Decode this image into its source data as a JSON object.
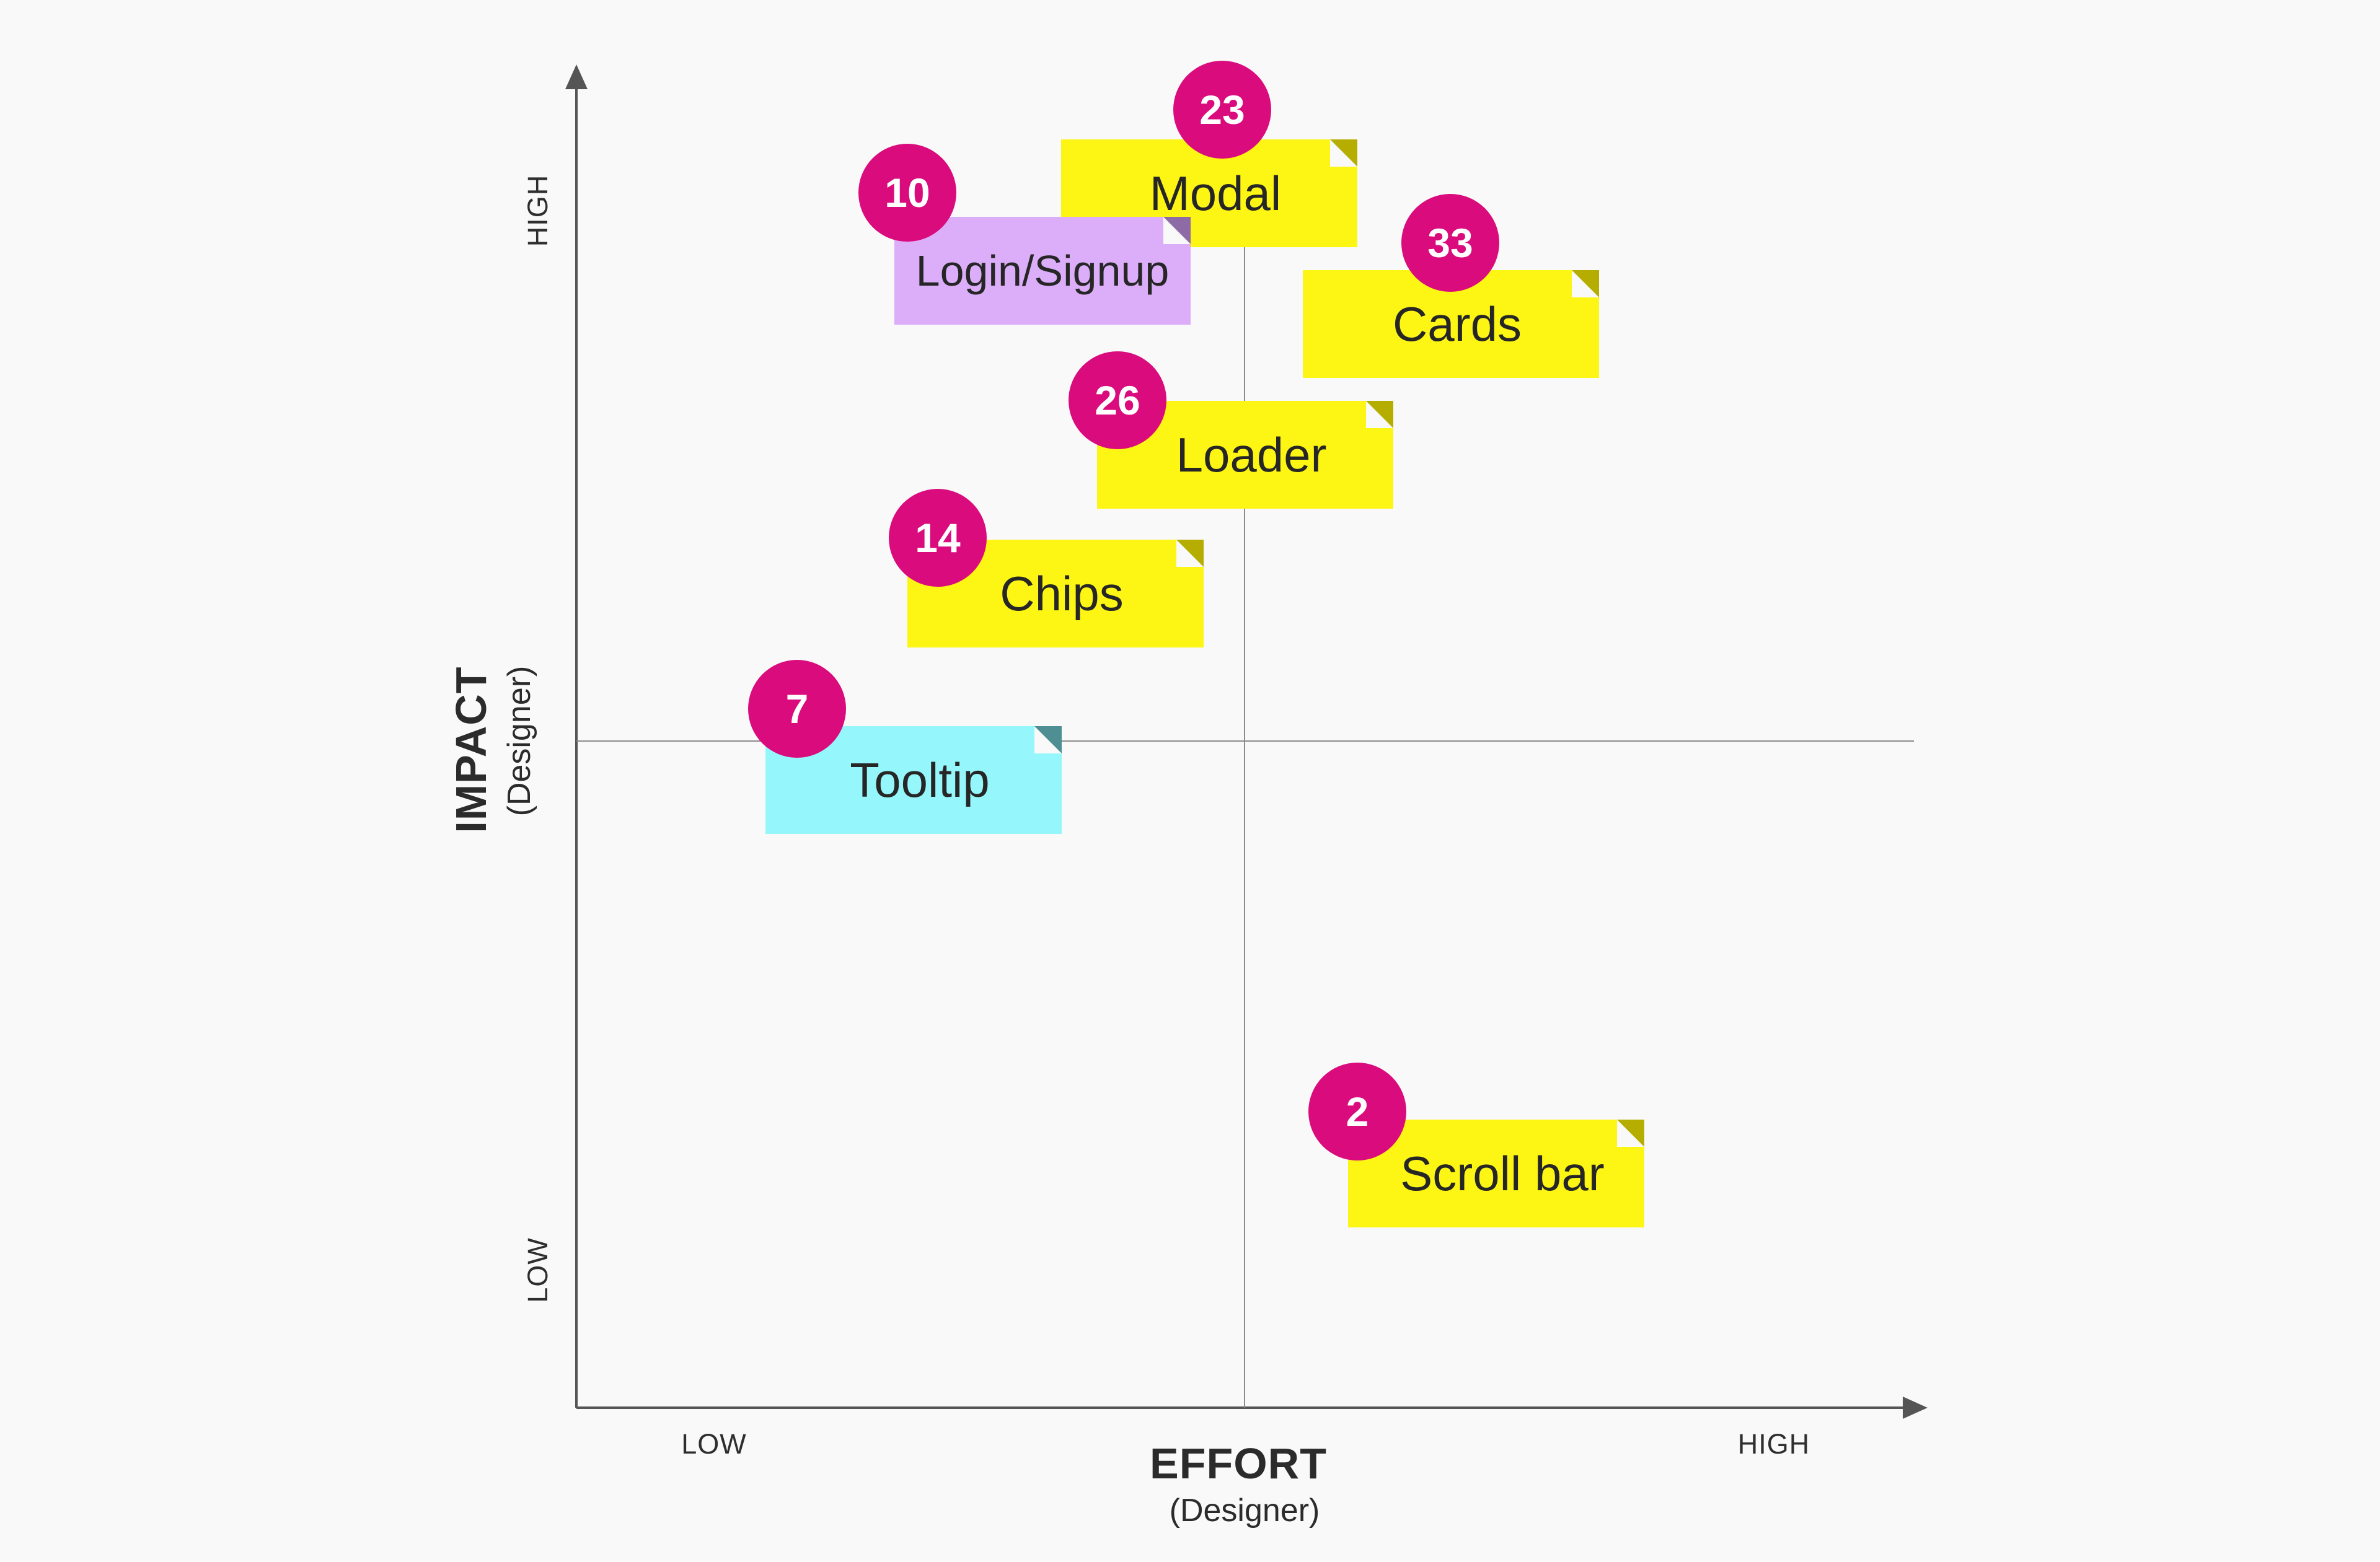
{
  "axes": {
    "x_title": "EFFORT",
    "x_subtitle": "(Designer)",
    "x_low": "LOW",
    "x_high": "HIGH",
    "y_title": "IMPACT",
    "y_subtitle": "(Designer)",
    "y_low": "LOW",
    "y_high": "HIGH"
  },
  "colors": {
    "background": "#f9f9f9",
    "axis": "#555555",
    "badge": "#d90b7d",
    "yellow_note": "#fdf514",
    "purple_note": "#dcaef9",
    "cyan_note": "#95f7fc"
  },
  "notes": [
    {
      "label": "Modal",
      "votes": "23",
      "color": "yellow"
    },
    {
      "label": "Login/Signup",
      "votes": "10",
      "color": "purple"
    },
    {
      "label": "Cards",
      "votes": "33",
      "color": "yellow"
    },
    {
      "label": "Loader",
      "votes": "26",
      "color": "yellow"
    },
    {
      "label": "Chips",
      "votes": "14",
      "color": "yellow"
    },
    {
      "label": "Tooltip",
      "votes": "7",
      "color": "cyan"
    },
    {
      "label": "Scroll bar",
      "votes": "2",
      "color": "yellow"
    }
  ]
}
